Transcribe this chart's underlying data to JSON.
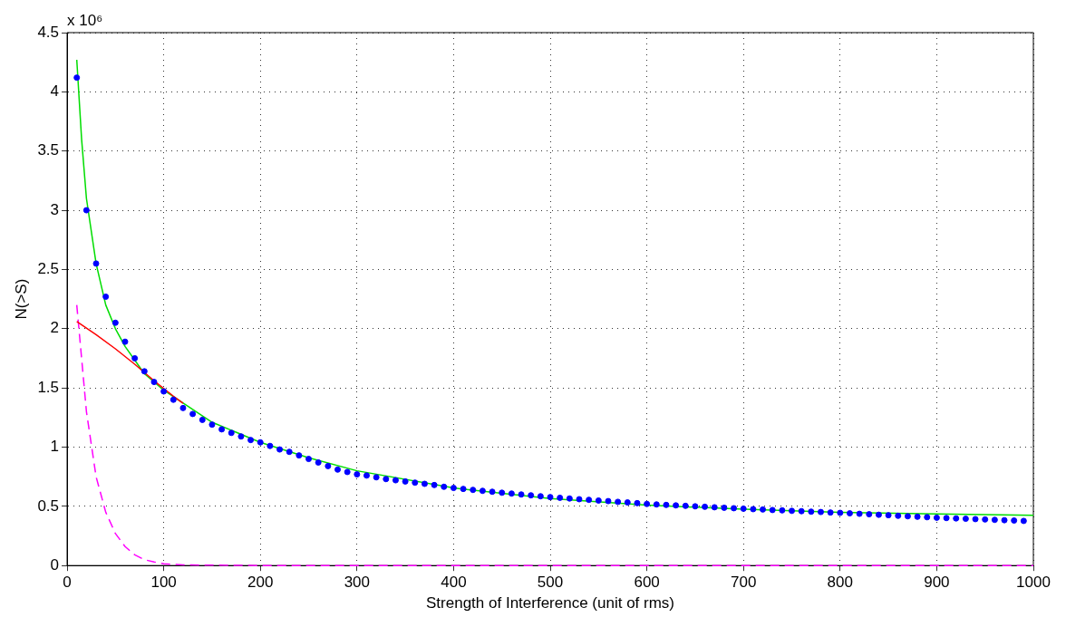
{
  "chart_data": {
    "type": "line",
    "xlabel": "Strength of Interference (unit of rms)",
    "ylabel": "N(>S)",
    "annotations": [
      "x 10⁶"
    ],
    "xlim": [
      0,
      1000
    ],
    "xticks": [
      0,
      100,
      200,
      300,
      400,
      500,
      600,
      700,
      800,
      900,
      1000
    ],
    "ylim": [
      0,
      4.5
    ],
    "yticks": [
      0,
      0.5,
      1,
      1.5,
      2,
      2.5,
      3,
      3.5,
      4,
      4.5
    ],
    "grid": true,
    "legend": false,
    "series": [
      {
        "type": "scatter",
        "marker": "circle",
        "color": "#0000ff",
        "x": [
          10,
          20,
          30,
          40,
          50,
          60,
          70,
          80,
          90,
          100,
          110,
          120,
          130,
          140,
          150,
          160,
          170,
          180,
          190,
          200,
          210,
          220,
          230,
          240,
          250,
          260,
          270,
          280,
          290,
          300,
          310,
          320,
          330,
          340,
          350,
          360,
          370,
          380,
          390,
          400,
          410,
          420,
          430,
          440,
          450,
          460,
          470,
          480,
          490,
          500,
          510,
          520,
          530,
          540,
          550,
          560,
          570,
          580,
          590,
          600,
          610,
          620,
          630,
          640,
          650,
          660,
          670,
          680,
          690,
          700,
          710,
          720,
          730,
          740,
          750,
          760,
          770,
          780,
          790,
          800,
          810,
          820,
          830,
          840,
          850,
          860,
          870,
          880,
          890,
          900,
          910,
          920,
          930,
          940,
          950,
          960,
          970,
          980,
          990
        ],
        "values": [
          4.12,
          3.0,
          2.55,
          2.27,
          2.05,
          1.89,
          1.75,
          1.64,
          1.55,
          1.47,
          1.4,
          1.33,
          1.28,
          1.23,
          1.19,
          1.15,
          1.12,
          1.09,
          1.06,
          1.04,
          1.01,
          0.98,
          0.96,
          0.93,
          0.9,
          0.87,
          0.84,
          0.81,
          0.79,
          0.77,
          0.76,
          0.745,
          0.73,
          0.72,
          0.71,
          0.7,
          0.69,
          0.68,
          0.665,
          0.655,
          0.647,
          0.639,
          0.631,
          0.623,
          0.615,
          0.608,
          0.6,
          0.593,
          0.585,
          0.578,
          0.572,
          0.566,
          0.56,
          0.555,
          0.549,
          0.544,
          0.538,
          0.533,
          0.527,
          0.52,
          0.516,
          0.512,
          0.508,
          0.504,
          0.5,
          0.496,
          0.492,
          0.488,
          0.484,
          0.48,
          0.476,
          0.473,
          0.469,
          0.466,
          0.462,
          0.459,
          0.455,
          0.452,
          0.448,
          0.445,
          0.441,
          0.437,
          0.433,
          0.429,
          0.425,
          0.42,
          0.416,
          0.412,
          0.408,
          0.404,
          0.401,
          0.398,
          0.395,
          0.392,
          0.389,
          0.386,
          0.383,
          0.38,
          0.377
        ]
      },
      {
        "type": "line",
        "marker": "none",
        "line_style": "solid",
        "color": "#ff0000",
        "x": [
          10,
          30,
          50,
          70,
          90,
          110,
          120
        ],
        "values": [
          2.06,
          1.95,
          1.83,
          1.7,
          1.56,
          1.43,
          1.37
        ]
      },
      {
        "type": "line",
        "marker": "none",
        "line_style": "solid",
        "color": "#00dd00",
        "x": [
          10,
          15,
          20,
          30,
          40,
          50,
          60,
          80,
          100,
          150,
          200,
          250,
          300,
          400,
          500,
          600,
          700,
          800,
          900,
          1000
        ],
        "values": [
          4.27,
          3.6,
          3.1,
          2.55,
          2.2,
          2.0,
          1.85,
          1.62,
          1.48,
          1.21,
          1.04,
          0.91,
          0.8,
          0.655,
          0.565,
          0.51,
          0.475,
          0.45,
          0.435,
          0.425
        ]
      },
      {
        "type": "line",
        "marker": "none",
        "line_style": "dashed",
        "color": "#ff00ff",
        "x": [
          10,
          20,
          30,
          40,
          50,
          60,
          70,
          80,
          90,
          100,
          120,
          200,
          1000
        ],
        "values": [
          2.2,
          1.3,
          0.75,
          0.45,
          0.27,
          0.16,
          0.09,
          0.05,
          0.03,
          0.015,
          0.005,
          0,
          0
        ]
      }
    ]
  }
}
